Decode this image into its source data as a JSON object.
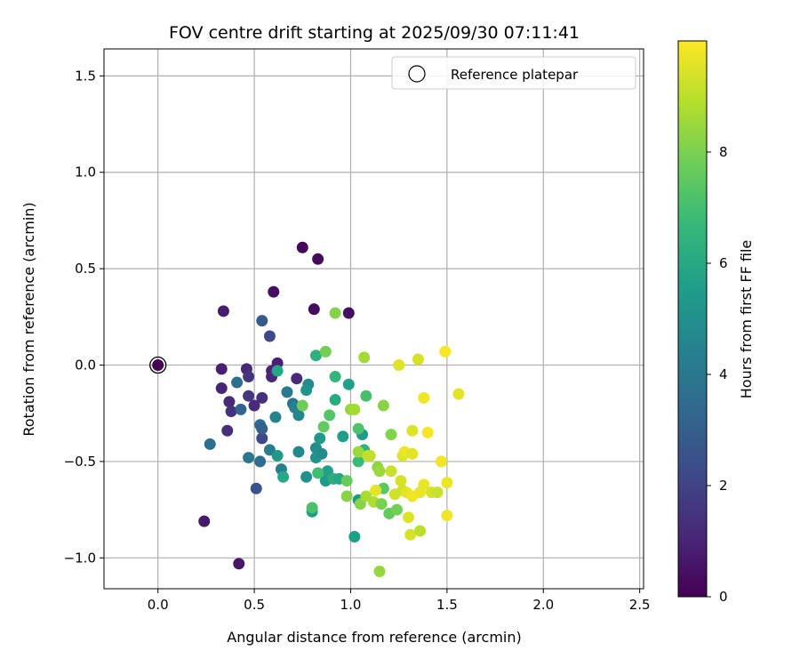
{
  "chart_data": {
    "type": "scatter",
    "title": "FOV centre drift starting at 2025/09/30 07:11:41",
    "xlabel": "Angular distance from reference (arcmin)",
    "ylabel": "Rotation from reference (arcmin)",
    "xlim": [
      -0.28,
      2.52
    ],
    "ylim": [
      -1.16,
      1.64
    ],
    "xticks": [
      0.0,
      0.5,
      1.0,
      1.5,
      2.0,
      2.5
    ],
    "xtick_labels": [
      "0.0",
      "0.5",
      "1.0",
      "1.5",
      "2.0",
      "2.5"
    ],
    "yticks": [
      -1.0,
      -0.5,
      0.0,
      0.5,
      1.0,
      1.5
    ],
    "ytick_labels": [
      "−1.0",
      "−0.5",
      "0.0",
      "0.5",
      "1.0",
      "1.5"
    ],
    "grid": true,
    "legend": {
      "location": "top-right",
      "label": "Reference platepar"
    },
    "reference": {
      "x": 0.0,
      "y": 0.0
    },
    "colorbar": {
      "label": "Hours from first FF file",
      "range": [
        0,
        10
      ],
      "ticks": [
        0,
        2,
        4,
        6,
        8
      ],
      "tick_labels": [
        "0",
        "2",
        "4",
        "6",
        "8"
      ],
      "colormap": "viridis"
    },
    "points": [
      {
        "x": 0.0,
        "y": 0.0,
        "h": 0.0
      },
      {
        "x": 0.75,
        "y": 0.61,
        "h": 0.2
      },
      {
        "x": 0.83,
        "y": 0.55,
        "h": 0.3
      },
      {
        "x": 0.6,
        "y": 0.38,
        "h": 0.4
      },
      {
        "x": 0.81,
        "y": 0.29,
        "h": 0.3
      },
      {
        "x": 0.99,
        "y": 0.27,
        "h": 0.4
      },
      {
        "x": 0.34,
        "y": 0.28,
        "h": 0.8
      },
      {
        "x": 0.42,
        "y": -1.03,
        "h": 0.6
      },
      {
        "x": 0.24,
        "y": -0.81,
        "h": 0.7
      },
      {
        "x": 0.62,
        "y": 0.01,
        "h": 0.9
      },
      {
        "x": 0.59,
        "y": -0.03,
        "h": 1.0
      },
      {
        "x": 0.46,
        "y": -0.02,
        "h": 1.1
      },
      {
        "x": 0.33,
        "y": -0.02,
        "h": 0.9
      },
      {
        "x": 0.33,
        "y": -0.12,
        "h": 1.0
      },
      {
        "x": 0.37,
        "y": -0.19,
        "h": 1.2
      },
      {
        "x": 0.38,
        "y": -0.24,
        "h": 1.4
      },
      {
        "x": 0.36,
        "y": -0.34,
        "h": 1.3
      },
      {
        "x": 0.47,
        "y": -0.06,
        "h": 1.5
      },
      {
        "x": 0.47,
        "y": -0.16,
        "h": 1.6
      },
      {
        "x": 0.5,
        "y": -0.21,
        "h": 1.2
      },
      {
        "x": 0.54,
        "y": -0.17,
        "h": 1.4
      },
      {
        "x": 0.59,
        "y": -0.06,
        "h": 1.1
      },
      {
        "x": 0.72,
        "y": -0.07,
        "h": 1.2
      },
      {
        "x": 0.58,
        "y": 0.15,
        "h": 2.2
      },
      {
        "x": 0.54,
        "y": 0.23,
        "h": 2.8
      },
      {
        "x": 0.54,
        "y": -0.38,
        "h": 2.2
      },
      {
        "x": 0.51,
        "y": -0.64,
        "h": 2.6
      },
      {
        "x": 0.43,
        "y": -0.23,
        "h": 3.2
      },
      {
        "x": 0.41,
        "y": -0.09,
        "h": 3.6
      },
      {
        "x": 0.27,
        "y": -0.41,
        "h": 3.6
      },
      {
        "x": 0.47,
        "y": -0.48,
        "h": 4.0
      },
      {
        "x": 0.53,
        "y": -0.31,
        "h": 3.4
      },
      {
        "x": 0.54,
        "y": -0.33,
        "h": 3.0
      },
      {
        "x": 0.53,
        "y": -0.5,
        "h": 3.5
      },
      {
        "x": 0.58,
        "y": -0.44,
        "h": 4.2
      },
      {
        "x": 0.61,
        "y": -0.27,
        "h": 4.5
      },
      {
        "x": 0.64,
        "y": -0.54,
        "h": 4.3
      },
      {
        "x": 0.67,
        "y": -0.14,
        "h": 4.1
      },
      {
        "x": 0.7,
        "y": -0.2,
        "h": 3.8
      },
      {
        "x": 0.71,
        "y": -0.22,
        "h": 4.4
      },
      {
        "x": 0.73,
        "y": -0.26,
        "h": 4.6
      },
      {
        "x": 0.73,
        "y": -0.45,
        "h": 4.7
      },
      {
        "x": 0.78,
        "y": -0.1,
        "h": 4.8
      },
      {
        "x": 0.77,
        "y": -0.13,
        "h": 5.2
      },
      {
        "x": 0.77,
        "y": -0.58,
        "h": 5.0
      },
      {
        "x": 0.82,
        "y": -0.43,
        "h": 4.9
      },
      {
        "x": 0.82,
        "y": -0.48,
        "h": 5.1
      },
      {
        "x": 0.84,
        "y": -0.38,
        "h": 5.3
      },
      {
        "x": 0.85,
        "y": -0.46,
        "h": 4.9
      },
      {
        "x": 0.87,
        "y": -0.6,
        "h": 5.4
      },
      {
        "x": 0.88,
        "y": -0.55,
        "h": 5.7
      },
      {
        "x": 0.8,
        "y": -0.76,
        "h": 5.5
      },
      {
        "x": 0.62,
        "y": -0.47,
        "h": 5.3
      },
      {
        "x": 0.62,
        "y": -0.03,
        "h": 5.9
      },
      {
        "x": 0.65,
        "y": -0.58,
        "h": 6.0
      },
      {
        "x": 0.82,
        "y": 0.05,
        "h": 6.3
      },
      {
        "x": 0.92,
        "y": -0.06,
        "h": 6.6
      },
      {
        "x": 0.92,
        "y": -0.18,
        "h": 6.1
      },
      {
        "x": 0.91,
        "y": -0.59,
        "h": 6.2
      },
      {
        "x": 0.94,
        "y": -0.59,
        "h": 5.9
      },
      {
        "x": 0.96,
        "y": -0.37,
        "h": 5.6
      },
      {
        "x": 0.99,
        "y": -0.1,
        "h": 5.7
      },
      {
        "x": 1.02,
        "y": -0.89,
        "h": 5.6
      },
      {
        "x": 1.04,
        "y": -0.7,
        "h": 5.2
      },
      {
        "x": 1.06,
        "y": -0.36,
        "h": 5.4
      },
      {
        "x": 1.07,
        "y": -0.44,
        "h": 6.4
      },
      {
        "x": 1.04,
        "y": -0.5,
        "h": 6.8
      },
      {
        "x": 1.04,
        "y": -0.33,
        "h": 7.2
      },
      {
        "x": 1.08,
        "y": -0.16,
        "h": 7.0
      },
      {
        "x": 0.89,
        "y": -0.26,
        "h": 7.3
      },
      {
        "x": 0.86,
        "y": -0.32,
        "h": 7.6
      },
      {
        "x": 0.83,
        "y": -0.56,
        "h": 6.9
      },
      {
        "x": 0.8,
        "y": -0.74,
        "h": 7.1
      },
      {
        "x": 0.75,
        "y": -0.21,
        "h": 7.8
      },
      {
        "x": 0.87,
        "y": 0.07,
        "h": 7.9
      },
      {
        "x": 0.92,
        "y": 0.27,
        "h": 8.1
      },
      {
        "x": 1.07,
        "y": 0.04,
        "h": 8.6
      },
      {
        "x": 0.98,
        "y": -0.6,
        "h": 7.7
      },
      {
        "x": 0.98,
        "y": -0.68,
        "h": 8.2
      },
      {
        "x": 1.0,
        "y": -0.23,
        "h": 8.4
      },
      {
        "x": 1.02,
        "y": -0.23,
        "h": 8.6
      },
      {
        "x": 1.04,
        "y": -0.45,
        "h": 8.5
      },
      {
        "x": 1.05,
        "y": -0.72,
        "h": 8.2
      },
      {
        "x": 1.08,
        "y": -0.68,
        "h": 8.7
      },
      {
        "x": 1.1,
        "y": -0.47,
        "h": 9.0
      },
      {
        "x": 1.12,
        "y": -0.71,
        "h": 8.8
      },
      {
        "x": 1.14,
        "y": -0.53,
        "h": 8.3
      },
      {
        "x": 1.15,
        "y": -0.55,
        "h": 8.5
      },
      {
        "x": 1.16,
        "y": -0.72,
        "h": 8.0
      },
      {
        "x": 1.17,
        "y": -0.21,
        "h": 8.2
      },
      {
        "x": 1.17,
        "y": -0.64,
        "h": 7.4
      },
      {
        "x": 1.2,
        "y": -0.77,
        "h": 7.6
      },
      {
        "x": 1.21,
        "y": -0.36,
        "h": 8.1
      },
      {
        "x": 1.21,
        "y": -0.55,
        "h": 9.2
      },
      {
        "x": 1.15,
        "y": -1.07,
        "h": 8.4
      },
      {
        "x": 1.23,
        "y": -0.67,
        "h": 9.3
      },
      {
        "x": 1.24,
        "y": -0.75,
        "h": 7.9
      },
      {
        "x": 1.25,
        "y": 0.0,
        "h": 9.5
      },
      {
        "x": 1.26,
        "y": -0.6,
        "h": 9.4
      },
      {
        "x": 1.27,
        "y": -0.65,
        "h": 9.3
      },
      {
        "x": 1.27,
        "y": -0.47,
        "h": 9.5
      },
      {
        "x": 1.28,
        "y": -0.45,
        "h": 9.7
      },
      {
        "x": 1.29,
        "y": -0.66,
        "h": 9.6
      },
      {
        "x": 1.3,
        "y": -0.79,
        "h": 9.5
      },
      {
        "x": 1.31,
        "y": -0.88,
        "h": 9.4
      },
      {
        "x": 1.32,
        "y": -0.34,
        "h": 9.5
      },
      {
        "x": 1.32,
        "y": -0.46,
        "h": 9.6
      },
      {
        "x": 1.32,
        "y": -0.68,
        "h": 9.8
      },
      {
        "x": 1.35,
        "y": 0.03,
        "h": 9.4
      },
      {
        "x": 1.36,
        "y": -0.86,
        "h": 9.0
      },
      {
        "x": 1.36,
        "y": -0.66,
        "h": 9.7
      },
      {
        "x": 1.38,
        "y": -0.17,
        "h": 9.8
      },
      {
        "x": 1.38,
        "y": -0.62,
        "h": 9.7
      },
      {
        "x": 1.4,
        "y": -0.35,
        "h": 9.9
      },
      {
        "x": 1.42,
        "y": -0.66,
        "h": 9.4
      },
      {
        "x": 1.45,
        "y": -0.66,
        "h": 9.2
      },
      {
        "x": 1.47,
        "y": -0.5,
        "h": 9.8
      },
      {
        "x": 1.49,
        "y": 0.07,
        "h": 9.9
      },
      {
        "x": 1.5,
        "y": -0.61,
        "h": 9.7
      },
      {
        "x": 1.5,
        "y": -0.78,
        "h": 9.8
      },
      {
        "x": 1.56,
        "y": -0.15,
        "h": 9.6
      },
      {
        "x": 1.09,
        "y": -0.47,
        "h": 9.1
      },
      {
        "x": 1.13,
        "y": -0.65,
        "h": 9.6
      }
    ]
  }
}
